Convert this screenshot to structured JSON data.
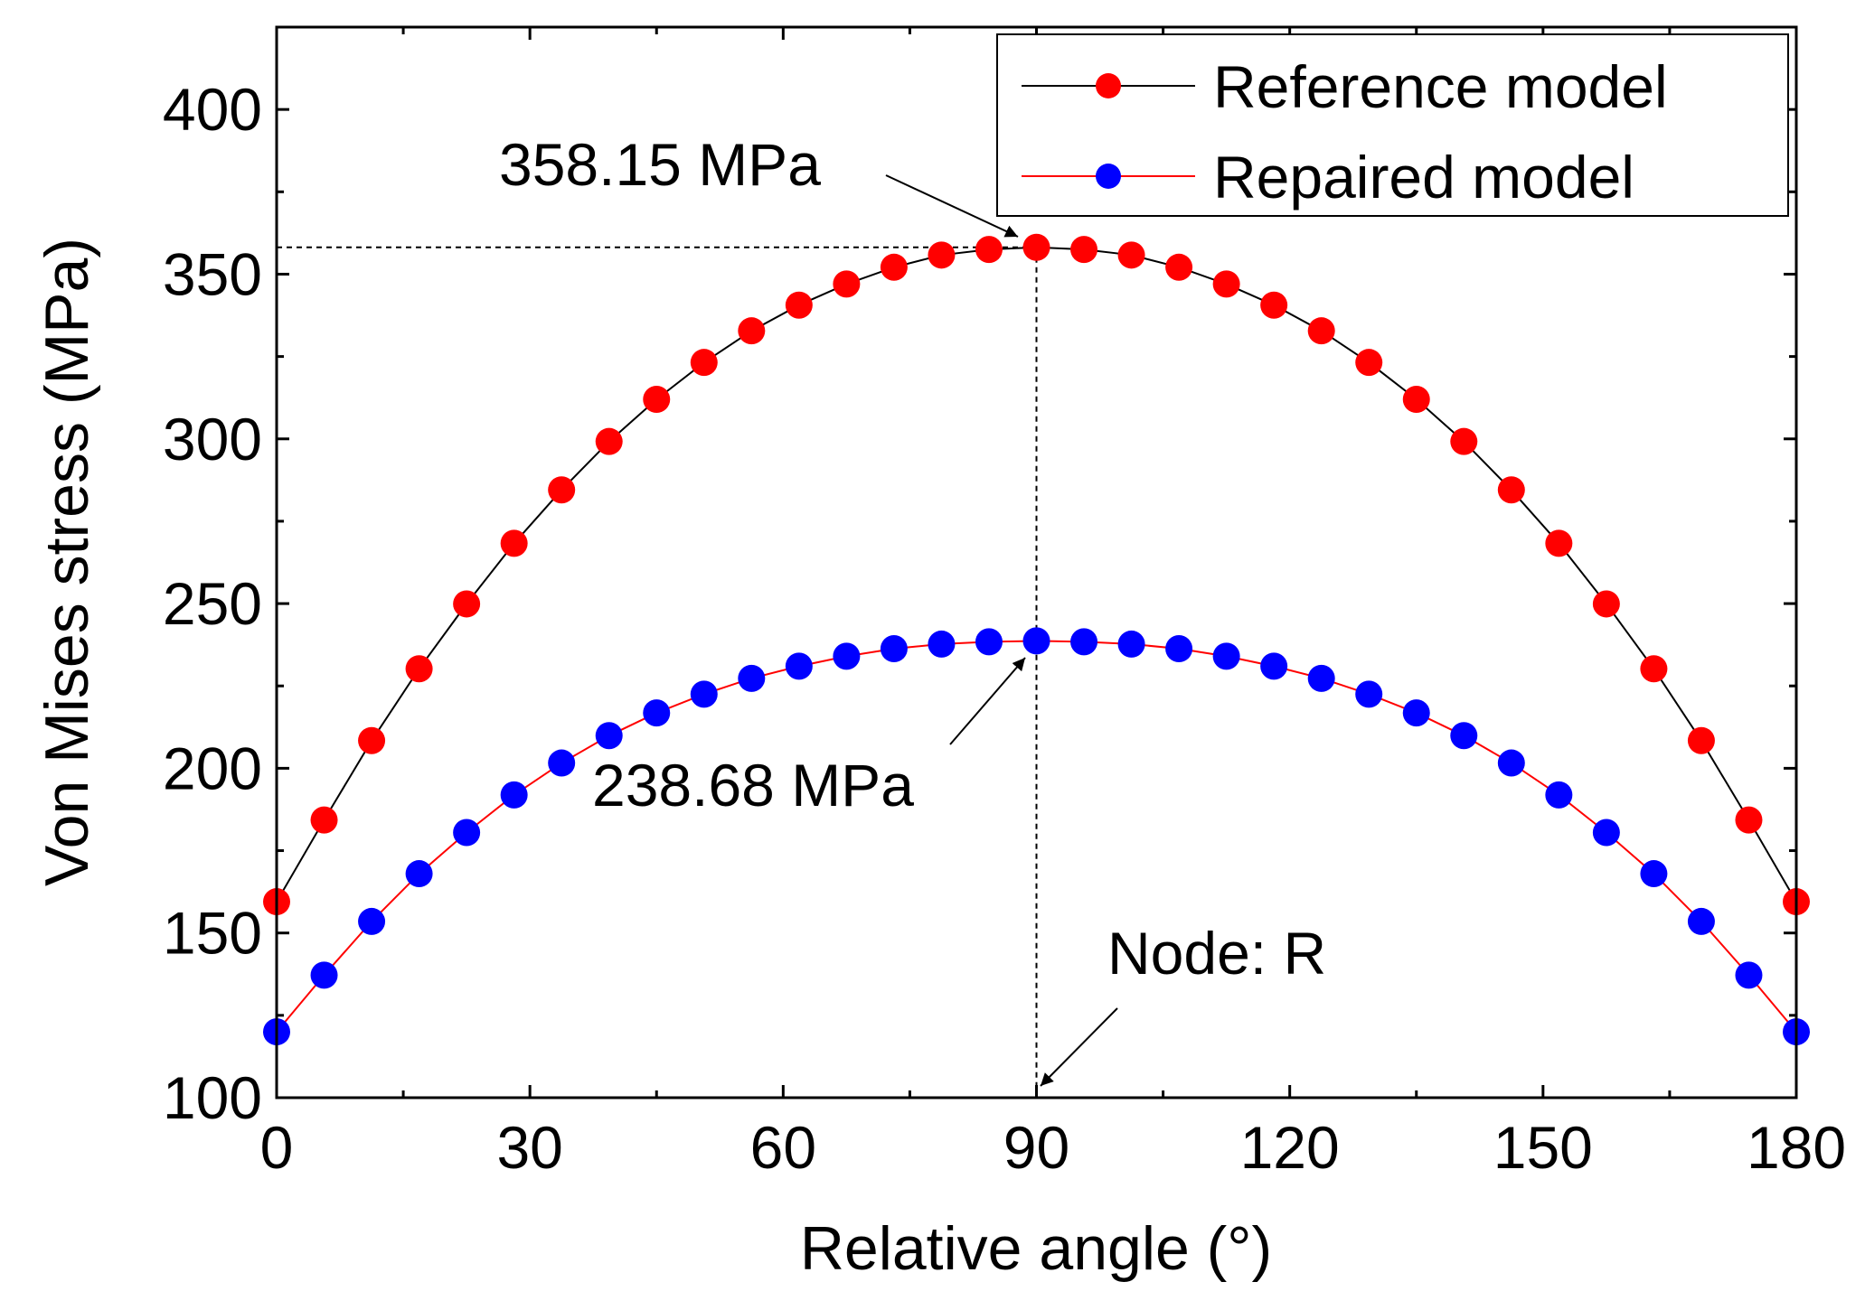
{
  "chart_data": {
    "type": "line",
    "title": "",
    "xlabel": "Relative angle (°)",
    "ylabel": "Von Mises stress (MPa)",
    "xlim": [
      0,
      180
    ],
    "ylim": [
      100,
      425
    ],
    "xticks": [
      0,
      30,
      60,
      90,
      120,
      150,
      180
    ],
    "yticks": [
      100,
      150,
      200,
      250,
      300,
      350,
      400
    ],
    "xtick_labels": [
      "0",
      "30",
      "60",
      "90",
      "120",
      "150",
      "180"
    ],
    "ytick_labels": [
      "100",
      "150",
      "200",
      "250",
      "300",
      "350",
      "400"
    ],
    "grid": false,
    "legend_position": "top-right",
    "x": [
      0,
      5.625,
      11.25,
      16.875,
      22.5,
      28.125,
      33.75,
      39.375,
      45,
      50.625,
      56.25,
      61.875,
      67.5,
      73.125,
      78.75,
      84.375,
      90,
      95.625,
      101.25,
      106.875,
      112.5,
      118.125,
      123.75,
      129.375,
      135,
      140.625,
      146.25,
      151.875,
      157.5,
      163.125,
      168.75,
      174.375,
      180
    ],
    "series": [
      {
        "name": "Reference model",
        "line_color": "#000000",
        "marker_color": "#ff0000",
        "values": [
          159.5,
          184.3,
          208.4,
          230.2,
          249.9,
          268.3,
          284.5,
          299.2,
          312.0,
          323.2,
          332.8,
          340.6,
          347.0,
          352.1,
          355.8,
          357.5,
          358.15,
          357.5,
          355.8,
          352.1,
          347.0,
          340.6,
          332.8,
          323.2,
          312.0,
          299.2,
          284.5,
          268.3,
          249.9,
          230.2,
          208.4,
          184.3,
          159.5
        ]
      },
      {
        "name": "Repaired model",
        "line_color": "#ff0000",
        "marker_color": "#0000ff",
        "values": [
          120.0,
          137.2,
          153.5,
          168.0,
          180.5,
          191.9,
          201.6,
          209.9,
          216.8,
          222.5,
          227.3,
          231.0,
          234.0,
          236.3,
          237.7,
          238.4,
          238.68,
          238.4,
          237.7,
          236.3,
          234.0,
          231.0,
          227.3,
          222.5,
          216.8,
          209.9,
          201.6,
          191.9,
          180.5,
          168.0,
          153.5,
          137.2,
          120.0
        ]
      }
    ],
    "annotations": [
      {
        "text": "358.15 MPa",
        "x": 90,
        "y": 358.15
      },
      {
        "text": "238.68 MPa",
        "x": 90,
        "y": 238.68
      },
      {
        "text": "Node: R",
        "x": 90,
        "y": 100
      }
    ]
  }
}
